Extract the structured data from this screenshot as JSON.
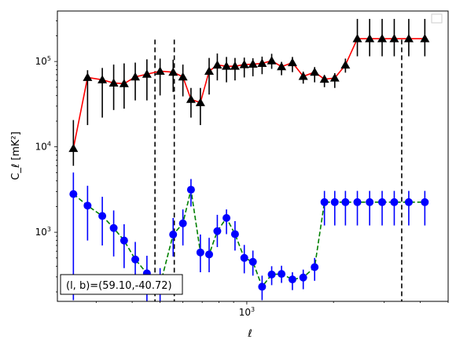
{
  "chart_data": {
    "type": "scatter",
    "title": "",
    "xlabel": "ℓ",
    "ylabel": "C_ℓ [mK²]",
    "xscale": "log",
    "yscale": "log",
    "xlim": [
      220,
      5000
    ],
    "ylim": [
      155,
      390000
    ],
    "grid": false,
    "legend": "top-right",
    "x_tick_labels": [
      {
        "value": 1000,
        "label": "10",
        "sup": "3"
      }
    ],
    "y_tick_labels": [
      {
        "value": 1000,
        "label": "10",
        "sup": "3"
      },
      {
        "value": 10000,
        "label": "10",
        "sup": "4"
      },
      {
        "value": 100000,
        "label": "10",
        "sup": "5"
      }
    ],
    "vlines": [
      480,
      560,
      3450
    ],
    "annotation": "(l, b)=(59.10,-40.72)",
    "series": [
      {
        "color": "#000000",
        "line_color": "#ff0000",
        "line_style": "solid",
        "marker": "triangle",
        "x": [
          250,
          280,
          315,
          345,
          375,
          410,
          450,
          500,
          555,
          600,
          640,
          690,
          740,
          790,
          850,
          910,
          980,
          1050,
          1130,
          1220,
          1320,
          1440,
          1570,
          1720,
          1860,
          2020,
          2200,
          2420,
          2670,
          2950,
          3250,
          3650,
          4150
        ],
        "y": [
          9600,
          65000,
          61000,
          56000,
          55000,
          66000,
          71000,
          77000,
          75000,
          66000,
          36000,
          33000,
          77000,
          91000,
          88000,
          88000,
          92000,
          93000,
          95000,
          102000,
          87000,
          97000,
          67000,
          75000,
          62000,
          64000,
          91000,
          185000,
          185000,
          185000,
          185000,
          185000,
          185000
        ],
        "yerr_low": [
          3600,
          47000,
          39000,
          29000,
          27000,
          31000,
          36000,
          37000,
          31000,
          27000,
          14000,
          15000,
          36000,
          31000,
          31000,
          28000,
          27000,
          26000,
          24000,
          20000,
          18000,
          22000,
          12000,
          18000,
          12000,
          15000,
          17000,
          70000,
          70000,
          70000,
          70000,
          70000,
          70000
        ],
        "yerr_high": [
          11000,
          14000,
          23000,
          36000,
          40000,
          31000,
          35000,
          31000,
          30000,
          26000,
          13000,
          16000,
          33000,
          33000,
          25000,
          22000,
          19000,
          16000,
          19000,
          21000,
          12000,
          16000,
          9000,
          11000,
          7000,
          9000,
          17000,
          130000,
          130000,
          130000,
          130000,
          130000,
          130000
        ]
      },
      {
        "color": "#0000ff",
        "line_color": "#008000",
        "line_style": "dashed",
        "marker": "circle",
        "x": [
          250,
          280,
          315,
          345,
          375,
          410,
          450,
          500,
          555,
          600,
          640,
          690,
          740,
          790,
          850,
          910,
          980,
          1050,
          1130,
          1220,
          1320,
          1440,
          1570,
          1720,
          1860,
          2020,
          2200,
          2420,
          2670,
          2950,
          3250,
          3650,
          4150
        ],
        "y": [
          2800,
          2050,
          1550,
          1120,
          800,
          480,
          330,
          240,
          940,
          1270,
          3150,
          580,
          550,
          1030,
          1470,
          950,
          500,
          450,
          230,
          320,
          325,
          280,
          295,
          390,
          2250,
          2250,
          2250,
          2250,
          2250,
          2250,
          2250,
          2250,
          2250
        ],
        "yerr_low": [
          2640,
          1250,
          850,
          600,
          420,
          280,
          180,
          100,
          420,
          570,
          1150,
          240,
          210,
          360,
          520,
          340,
          170,
          140,
          70,
          80,
          70,
          70,
          80,
          120,
          1050,
          1050,
          1050,
          1050,
          1050,
          1050,
          1050,
          1050,
          1050
        ],
        "yerr_high": [
          2200,
          1450,
          1050,
          680,
          440,
          290,
          200,
          140,
          530,
          580,
          1050,
          360,
          310,
          570,
          380,
          400,
          210,
          160,
          80,
          80,
          80,
          60,
          70,
          110,
          800,
          800,
          800,
          800,
          800,
          800,
          800,
          800,
          800
        ]
      }
    ]
  }
}
